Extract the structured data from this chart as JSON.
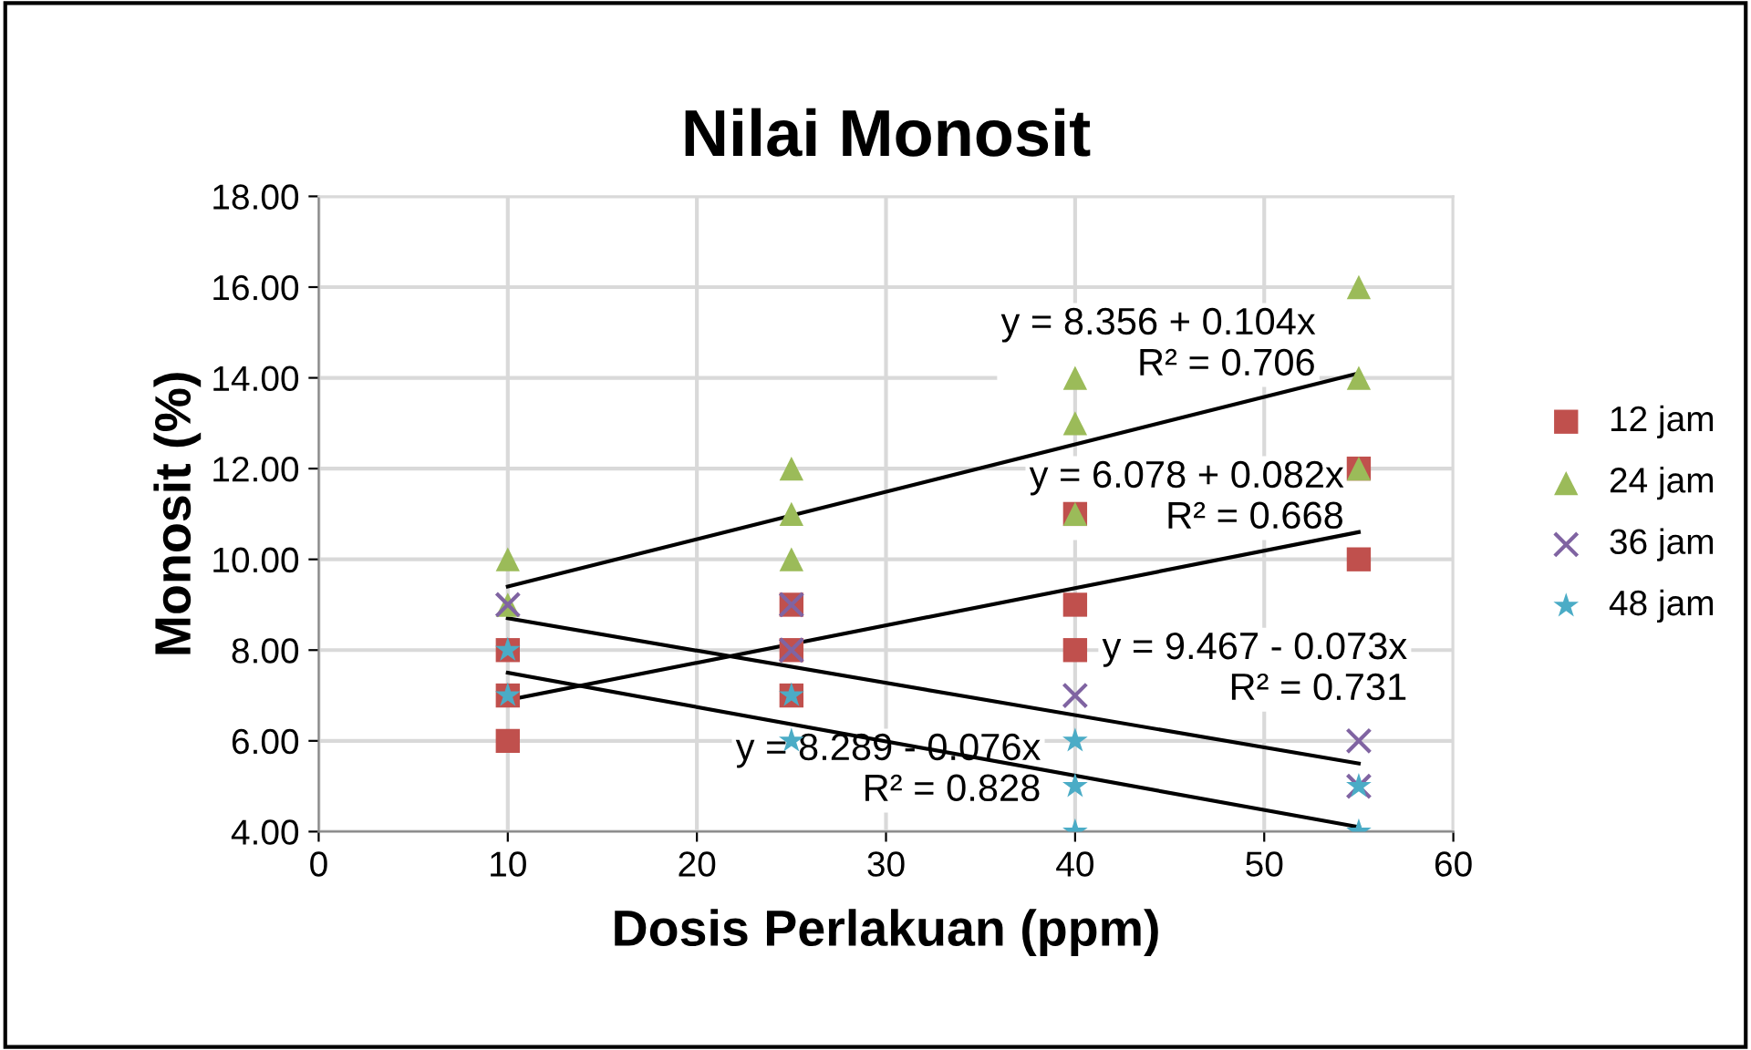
{
  "chart_data": {
    "type": "scatter",
    "title": "Nilai Monosit",
    "xlabel": "Dosis Perlakuan (ppm)",
    "ylabel": "Monosit (%)",
    "series": [
      {
        "name": "12 jam",
        "color": "#c0504d",
        "marker": "square",
        "x": [
          10,
          10,
          10,
          25,
          25,
          25,
          40,
          40,
          40,
          55,
          55
        ],
        "values": [
          6,
          7,
          8,
          7,
          8,
          9,
          8,
          9,
          11,
          10,
          12
        ]
      },
      {
        "name": "24 jam",
        "color": "#9bbb59",
        "marker": "triangle",
        "x": [
          10,
          10,
          25,
          25,
          25,
          40,
          40,
          40,
          55,
          55,
          55
        ],
        "values": [
          9,
          10,
          10,
          11,
          12,
          11,
          13,
          14,
          12,
          14,
          16
        ]
      },
      {
        "name": "36 jam",
        "color": "#8064a2",
        "marker": "cross",
        "x": [
          10,
          25,
          25,
          40,
          55,
          55
        ],
        "values": [
          9,
          8,
          9,
          7,
          5,
          6
        ]
      },
      {
        "name": "48 jam",
        "color": "#4bacc6",
        "marker": "star",
        "x": [
          10,
          10,
          25,
          25,
          40,
          40,
          40,
          55,
          55
        ],
        "values": [
          7,
          8,
          6,
          7,
          4,
          5,
          6,
          4,
          5
        ]
      },
      {
        "type": "line",
        "color": "#000000",
        "marker": "none",
        "x": [
          10,
          55
        ],
        "values": [
          6.9,
          10.6
        ]
      },
      {
        "type": "line",
        "color": "#000000",
        "marker": "none",
        "x": [
          10,
          55
        ],
        "values": [
          9.4,
          14.1
        ]
      },
      {
        "type": "line",
        "color": "#000000",
        "marker": "none",
        "x": [
          10,
          55
        ],
        "values": [
          8.7,
          5.5
        ]
      },
      {
        "type": "line",
        "color": "#000000",
        "marker": "none",
        "x": [
          10,
          55
        ],
        "values": [
          7.5,
          4.1
        ]
      }
    ],
    "annotations": [
      "y = 8.356 + 0.104x\nR² = 0.706",
      "y = 6.078 + 0.082x\nR² = 0.668",
      "y = 9.467 - 0.073x\nR² = 0.731",
      "y = 8.289 - 0.076x\nR² = 0.828"
    ],
    "xlim": [
      0,
      60
    ],
    "xticks": [
      0,
      10,
      20,
      30,
      40,
      50,
      60
    ],
    "ylim": [
      4,
      18
    ],
    "yticks": [
      {
        "value": 4,
        "label": "4.00"
      },
      {
        "value": 6,
        "label": "6.00"
      },
      {
        "value": 8,
        "label": "8.00"
      },
      {
        "value": 10,
        "label": "10.00"
      },
      {
        "value": 12,
        "label": "12.00"
      },
      {
        "value": 14,
        "label": "14.00"
      },
      {
        "value": 16,
        "label": "16.00"
      },
      {
        "value": 18,
        "label": "18.00"
      }
    ],
    "grid": true,
    "legend": "right"
  }
}
